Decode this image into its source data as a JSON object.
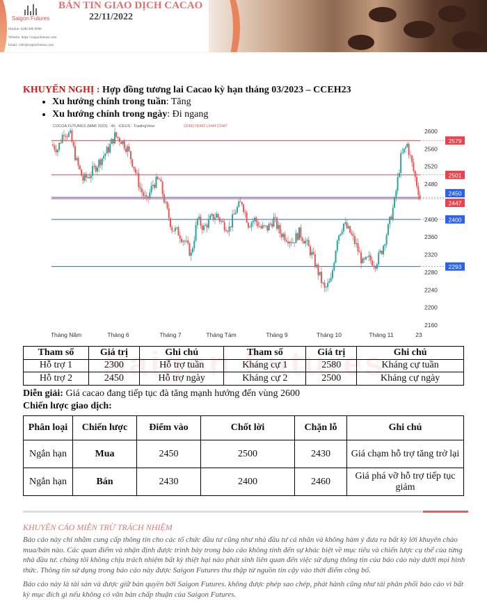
{
  "header": {
    "title": "BẢN TIN GIAO DỊCH CACAO",
    "date": "22/11/2022",
    "logo_text": "Saigon Futures",
    "hotline": "Hotline: 0286 686 0068",
    "website": "Website: https://saigonfutures.com",
    "email": "Email: cskh@saigonfutures.com"
  },
  "recommendation": {
    "label": "KHUYẾN NGHỊ :",
    "contract": "Hợp đồng tương lai Cacao kỳ hạn tháng 03/2023 – CCEH23",
    "bullets": [
      {
        "label": "Xu hướng chính trong tuần",
        "value": ": Tăng"
      },
      {
        "label": "Xu hướng chính trong ngày",
        "value": ": Đi ngang"
      }
    ]
  },
  "chart_data": {
    "type": "candlestick",
    "title": "COCOA FUTURES (MAR 2023) · 4h · ICEUS · TradingView",
    "ohlc_text": "O2462 H2462 L2444 C2447",
    "ylim": [
      2160,
      2620
    ],
    "yticks": [
      2160,
      2200,
      2240,
      2280,
      2320,
      2360,
      2400,
      2440,
      2480,
      2520,
      2560,
      2600
    ],
    "xticks": [
      "Tháng Năm",
      "Tháng 6",
      "Tháng 7",
      "Tháng Tám",
      "Tháng 9",
      "Tháng 10",
      "Tháng 11",
      "23"
    ],
    "closes": [
      2570,
      2560,
      2600,
      2590,
      2530,
      2490,
      2500,
      2520,
      2540,
      2560,
      2590,
      2580,
      2560,
      2520,
      2470,
      2440,
      2480,
      2490,
      2430,
      2380,
      2370,
      2350,
      2320,
      2400,
      2380,
      2400,
      2410,
      2390,
      2380,
      2420,
      2440,
      2390,
      2400,
      2380,
      2380,
      2400,
      2370,
      2360,
      2350,
      2370,
      2350,
      2320,
      2280,
      2240,
      2260,
      2360,
      2390,
      2370,
      2340,
      2300,
      2310,
      2300,
      2330,
      2380,
      2440,
      2540,
      2570,
      2510,
      2450
    ],
    "levels": [
      {
        "value": 2579,
        "color": "#e8434b"
      },
      {
        "value": 2501,
        "color": "#e8434b"
      },
      {
        "value": 2450,
        "color": "#2a62e8"
      },
      {
        "value": 2447,
        "color": "#e8434b"
      },
      {
        "value": 2400,
        "color": "#2a62e8"
      },
      {
        "value": 2293,
        "color": "#2a62e8"
      }
    ],
    "up_color": "#26a69a",
    "down_color": "#ef5350"
  },
  "levels_table": {
    "watermark": "Saigon Futures",
    "headers": [
      "Tham số",
      "Giá trị",
      "Ghi chú",
      "Tham số",
      "Giá trị",
      "Ghi chú"
    ],
    "rows": [
      [
        "Hỗ trợ 1",
        "2300",
        "Hỗ trợ tuần",
        "Kháng cự 1",
        "2580",
        "Kháng cự tuần"
      ],
      [
        "Hỗ trợ 2",
        "2450",
        "Hỗ trợ ngày",
        "Kháng cự 2",
        "2500",
        "Kháng cự ngày"
      ]
    ]
  },
  "explanation": {
    "label": "Diễn giải:",
    "text": " Giá cacao đang tiếp tục đà tăng mạnh hướng đến vùng 2600"
  },
  "strategy_title": "Chiến lược giao dịch:",
  "strategy_table": {
    "headers": [
      "Phân loại",
      "Chiến lược",
      "Điểm vào",
      "Chốt lời",
      "Chặn lỗ",
      "Ghi chú"
    ],
    "rows": [
      [
        "Ngắn hạn",
        "Mua",
        "2450",
        "2500",
        "2430",
        "Giá chạm hỗ trợ tăng trở lại"
      ],
      [
        "Ngắn hạn",
        "Bán",
        "2430",
        "2400",
        "2460",
        "Giá phá vỡ hỗ trợ tiếp tục giảm"
      ]
    ]
  },
  "disclaimer": {
    "title": "KHUYẾN CÁO MIỄN TRỪ TRÁCH NHIỆM",
    "p1": "Báo cáo này chỉ nhằm cung cấp thông tin cho các tổ chức đầu tư cũng như nhà đầu tư cá nhân và không hàm ý đưa ra bất kỳ lời khuyên chào mua/bán nào. Các quan điểm và nhận định được trình bày trong báo cáo không tính đến sự khác biệt về mục tiêu và chiến lược cụ thể của từng nhà đầu tư. chúng tôi không chịu trách nhiệm bất kỳ thiệt hại nào phát sinh liên quan đến việc sử dụng thông tin của báo cáo này dưới mọi hình thức. Thông tin sử dụng trong báo cáo này được Saigon Futures thu thập từ nguồn tin cậy vào thời điểm công bố.",
    "p2": "Báo cáo này là tài sản và được giữ bản quyền bởi Saigon Futures. không được phép sao chép, phát hành cũng như tái phân phối báo cáo vì bất kỳ mục đích gì nếu không có văn bản chấp thuận của Saigon Futures."
  }
}
